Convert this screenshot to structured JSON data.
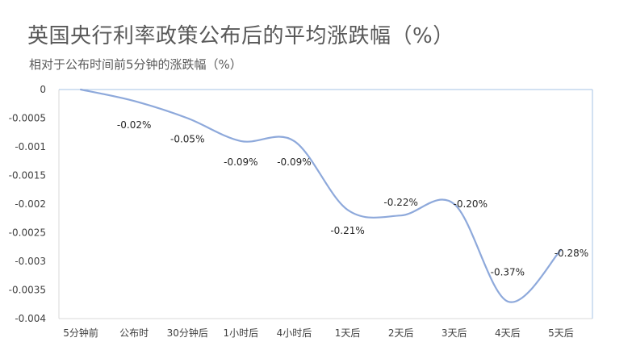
{
  "title": "英国央行利率政策公布后的平均涨跌幅（%）",
  "subtitle": "相对于公布时间前5分钟的涨跌幅（%）",
  "chart_data": {
    "type": "line",
    "title": "英国央行利率政策公布后的平均涨跌幅（%）",
    "subtitle": "相对于公布时间前5分钟的涨跌幅（%）",
    "categories": [
      "5分钟前",
      "公布时",
      "30分钟后",
      "1小时后",
      "4小时后",
      "1天后",
      "2天后",
      "3天后",
      "4天后",
      "5天后"
    ],
    "values": [
      0.0,
      -0.0002,
      -0.0005,
      -0.0009,
      -0.0009,
      -0.0021,
      -0.0022,
      -0.002,
      -0.0037,
      -0.0028
    ],
    "data_labels": [
      "",
      "-0.02%",
      "-0.05%",
      "-0.09%",
      "-0.09%",
      "-0.21%",
      "-0.22%",
      "-0.20%",
      "-0.37%",
      "-0.28%"
    ],
    "yticks": [
      "0",
      "-0.0005",
      "-0.001",
      "-0.0015",
      "-0.002",
      "-0.0025",
      "-0.003",
      "-0.0035",
      "-0.004"
    ],
    "ylim": [
      -0.004,
      0
    ],
    "line_color": "#8ea9db",
    "grid": false,
    "smooth": true
  }
}
